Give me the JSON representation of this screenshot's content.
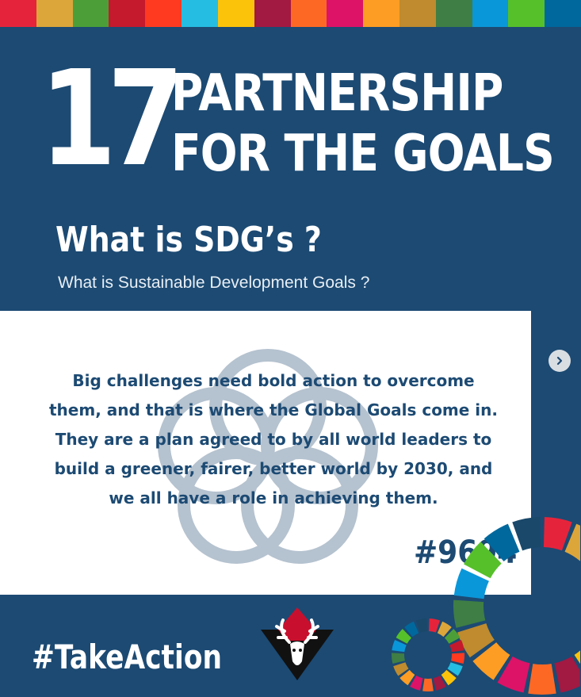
{
  "header": {
    "goal_number": "17",
    "goal_title_line1": "PARTNERSHIP",
    "goal_title_line2": "FOR THE GOALS"
  },
  "intro": {
    "heading": "What is SDG’s ?",
    "subheading": "What is Sustainable Development Goals ?"
  },
  "card": {
    "body": "Big challenges need bold action to overcome them, and that is where the Global Goals come in. They are a plan agreed to by all world leaders to build a greener, fairer, better world by 2030, and we all have a role in achieving them.",
    "hashtag_number": "#9694"
  },
  "footer": {
    "hashtag": "#TakeAction"
  },
  "icons": {
    "next": "chevron-right-icon",
    "logo": "deer-head-icon",
    "flower": "sdg-flower-icon",
    "wheel": "sdg-wheel-icon"
  },
  "colors": {
    "background": "#1c4a73",
    "card": "#ffffff",
    "text_dark": "#1c4a73",
    "flower": "#b5c2cf",
    "logo_red": "#c8102e",
    "sdg": [
      "#e5243b",
      "#dda63a",
      "#4c9f38",
      "#c5192d",
      "#ff3a21",
      "#26bde2",
      "#fcc30b",
      "#a21942",
      "#fd6925",
      "#dd1367",
      "#fd9d24",
      "#bf8b2e",
      "#3f7e44",
      "#0a97d9",
      "#56c02b",
      "#00689d",
      "#19486a"
    ]
  }
}
